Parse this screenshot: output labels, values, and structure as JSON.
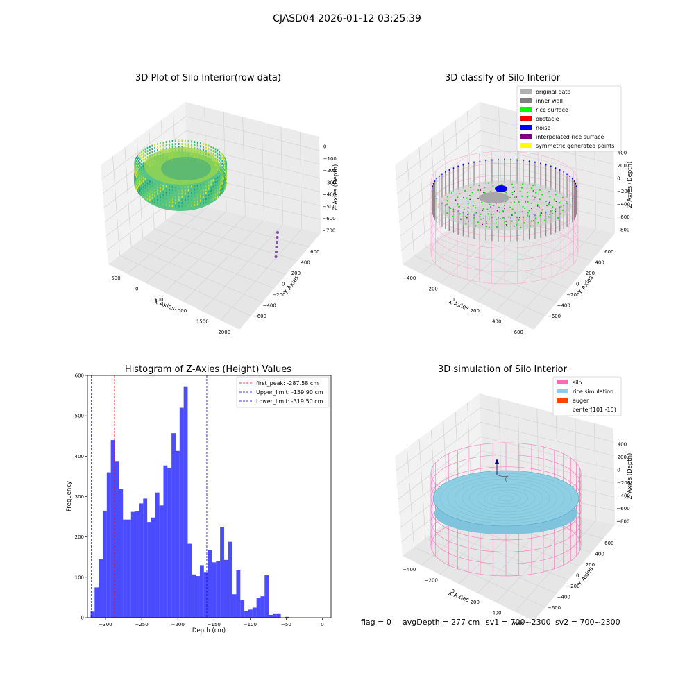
{
  "figure": {
    "suptitle": "CJASD04 2026-01-12 03:25:39",
    "footer": {
      "flag": "flag = 0",
      "avg_depth": "avgDepth = 277 cm",
      "sv1": "sv1 = 700~2300",
      "sv2": "sv2 = 700~2300"
    }
  },
  "panels": {
    "raw": {
      "title": "3D Plot of Silo Interior(row data)",
      "xlabel": "X Axies",
      "ylabel": "Y Axies",
      "zlabel": "Z Axies (Depth)",
      "xticks": [
        "-500",
        "0",
        "500",
        "1000",
        "1500",
        "2000"
      ],
      "yticks": [
        "600",
        "400",
        "200",
        "0",
        "−200",
        "−400",
        "−600"
      ],
      "zticks": [
        "0",
        "−100",
        "−200",
        "−300",
        "−400",
        "−500",
        "−600",
        "−700"
      ]
    },
    "classify": {
      "title": "3D classify of Silo Interior",
      "xlabel": "X Axies",
      "ylabel": "Y Axies",
      "zlabel": "Z Axies (Depth)",
      "xticks": [
        "−400",
        "−200",
        "0",
        "200",
        "400",
        "600"
      ],
      "yticks": [
        "600",
        "400",
        "200",
        "0",
        "−200",
        "−400",
        "−600"
      ],
      "zticks": [
        "400",
        "200",
        "0",
        "−200",
        "−400",
        "−600",
        "−800"
      ],
      "legend": [
        {
          "label": "original data",
          "color": "#b0b0b0"
        },
        {
          "label": "inner wall",
          "color": "#808080"
        },
        {
          "label": "rice surface",
          "color": "#00ff00"
        },
        {
          "label": "obstacle",
          "color": "#ff0000"
        },
        {
          "label": "noise",
          "color": "#0000ff"
        },
        {
          "label": "interpolated rice surface",
          "color": "#800080"
        },
        {
          "label": "symmetric generated points",
          "color": "#ffff00"
        }
      ]
    },
    "simulation": {
      "title": "3D simulation of Silo Interior",
      "xlabel": "X Axies",
      "ylabel": "Y Axies",
      "zlabel": "Z Axies (Depth)",
      "xticks": [
        "−400",
        "−200",
        "0",
        "200",
        "400",
        "600"
      ],
      "yticks": [
        "600",
        "400",
        "200",
        "0",
        "−200",
        "−400",
        "−600"
      ],
      "zticks": [
        "400",
        "200",
        "0",
        "−200",
        "−400",
        "−600",
        "−800"
      ],
      "legend": [
        {
          "label": "silo",
          "color": "#ff69b4"
        },
        {
          "label": "rice simulation",
          "color": "#87ceeb"
        },
        {
          "label": "auger",
          "color": "#ff4500"
        },
        {
          "label": "center(101,-15)",
          "color": ""
        }
      ]
    }
  },
  "chart_data": {
    "type": "bar",
    "title": "Histogram of Z-Axies (Height) Values",
    "xlabel": "Depth (cm)",
    "ylabel": "Frequency",
    "xlim": [
      -325,
      12
    ],
    "ylim": [
      0,
      600
    ],
    "bar_color": "#0000ff",
    "bar_opacity": 0.7,
    "xticks": [
      -300,
      -250,
      -200,
      -150,
      -100,
      -50,
      0
    ],
    "xtick_labels": [
      "−300",
      "−250",
      "−200",
      "−150",
      "−100",
      "−50",
      "0"
    ],
    "yticks": [
      0,
      100,
      200,
      300,
      400,
      500,
      600
    ],
    "bins": [
      {
        "x0": -320.7,
        "x1": -315.1,
        "value": 15
      },
      {
        "x0": -315.1,
        "x1": -309.5,
        "value": 75
      },
      {
        "x0": -309.5,
        "x1": -303.9,
        "value": 145
      },
      {
        "x0": -303.9,
        "x1": -298.3,
        "value": 265
      },
      {
        "x0": -298.3,
        "x1": -292.7,
        "value": 360
      },
      {
        "x0": -292.7,
        "x1": -287.1,
        "value": 440
      },
      {
        "x0": -287.1,
        "x1": -281.5,
        "value": 388
      },
      {
        "x0": -281.5,
        "x1": -275.9,
        "value": 318
      },
      {
        "x0": -275.9,
        "x1": -270.3,
        "value": 243
      },
      {
        "x0": -270.3,
        "x1": -264.7,
        "value": 243
      },
      {
        "x0": -264.7,
        "x1": -259.1,
        "value": 262
      },
      {
        "x0": -259.1,
        "x1": -253.5,
        "value": 263
      },
      {
        "x0": -253.5,
        "x1": -247.9,
        "value": 283
      },
      {
        "x0": -247.9,
        "x1": -242.3,
        "value": 295
      },
      {
        "x0": -242.3,
        "x1": -236.7,
        "value": 237
      },
      {
        "x0": -236.7,
        "x1": -231.1,
        "value": 248
      },
      {
        "x0": -231.1,
        "x1": -225.5,
        "value": 310
      },
      {
        "x0": -225.5,
        "x1": -219.9,
        "value": 278
      },
      {
        "x0": -219.9,
        "x1": -214.3,
        "value": 377
      },
      {
        "x0": -214.3,
        "x1": -208.7,
        "value": 370
      },
      {
        "x0": -208.7,
        "x1": -203.1,
        "value": 457
      },
      {
        "x0": -203.1,
        "x1": -197.5,
        "value": 413
      },
      {
        "x0": -197.5,
        "x1": -191.9,
        "value": 520
      },
      {
        "x0": -191.9,
        "x1": -186.3,
        "value": 573
      },
      {
        "x0": -186.3,
        "x1": -180.7,
        "value": 183
      },
      {
        "x0": -180.7,
        "x1": -175.1,
        "value": 107
      },
      {
        "x0": -175.1,
        "x1": -169.5,
        "value": 103
      },
      {
        "x0": -169.5,
        "x1": -163.9,
        "value": 130
      },
      {
        "x0": -163.9,
        "x1": -158.3,
        "value": 113
      },
      {
        "x0": -158.3,
        "x1": -152.7,
        "value": 167
      },
      {
        "x0": -152.7,
        "x1": -147.1,
        "value": 137
      },
      {
        "x0": -147.1,
        "x1": -141.5,
        "value": 141
      },
      {
        "x0": -141.5,
        "x1": -135.9,
        "value": 225
      },
      {
        "x0": -135.9,
        "x1": -130.3,
        "value": 143
      },
      {
        "x0": -130.3,
        "x1": -124.7,
        "value": 188
      },
      {
        "x0": -124.7,
        "x1": -119.1,
        "value": 58
      },
      {
        "x0": -119.1,
        "x1": -113.5,
        "value": 117
      },
      {
        "x0": -113.5,
        "x1": -107.9,
        "value": 43
      },
      {
        "x0": -107.9,
        "x1": -102.3,
        "value": 16
      },
      {
        "x0": -102.3,
        "x1": -96.7,
        "value": 20
      },
      {
        "x0": -96.7,
        "x1": -91.1,
        "value": 25
      },
      {
        "x0": -91.1,
        "x1": -85.5,
        "value": 49
      },
      {
        "x0": -85.5,
        "x1": -79.9,
        "value": 53
      },
      {
        "x0": -79.9,
        "x1": -74.3,
        "value": 105
      },
      {
        "x0": -74.3,
        "x1": -68.7,
        "value": 7
      },
      {
        "x0": -68.7,
        "x1": -63.1,
        "value": 9
      },
      {
        "x0": -63.1,
        "x1": -57.5,
        "value": 9
      },
      {
        "x0": -57.5,
        "x1": -51.9,
        "value": 0
      },
      {
        "x0": -51.9,
        "x1": -46.3,
        "value": 2
      }
    ],
    "vlines": [
      {
        "label": "first_peak: -287.58 cm",
        "x": -287.58,
        "color": "#ff0000"
      },
      {
        "label": "Upper_limit: -159.90 cm",
        "x": -159.9,
        "color": "#0000ff"
      },
      {
        "label": "Lower_limit: -319.50 cm",
        "x": -319.5,
        "color": "#0000ff"
      }
    ]
  }
}
